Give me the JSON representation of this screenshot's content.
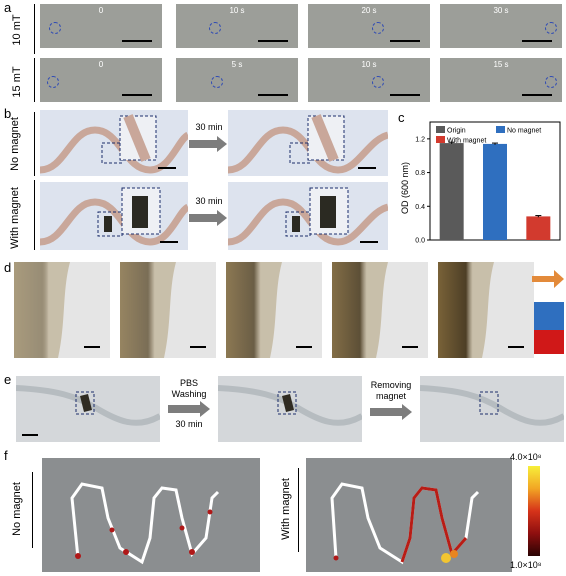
{
  "panels": {
    "a": "a",
    "b": "b",
    "c": "c",
    "d": "d",
    "e": "e",
    "f": "f"
  },
  "panel_a": {
    "rows": [
      {
        "label": "10 mT",
        "times": [
          "0",
          "10 s",
          "20 s",
          "30 s"
        ],
        "dot_x": [
          0.08,
          0.3,
          0.58,
          0.95
        ]
      },
      {
        "label": "15 mT",
        "times": [
          "0",
          "5 s",
          "10 s",
          "15 s"
        ],
        "dot_x": [
          0.06,
          0.32,
          0.58,
          0.95
        ]
      }
    ]
  },
  "panel_b": {
    "rows": [
      {
        "label": "No magnet",
        "arrow": "30 min"
      },
      {
        "label": "With magnet",
        "arrow": "30 min"
      }
    ]
  },
  "chart_data": {
    "type": "bar",
    "categories": [
      "Origin",
      "No magnet",
      "With magnet"
    ],
    "values": [
      1.15,
      1.14,
      0.28
    ],
    "errors": [
      0.01,
      0.01,
      0.01
    ],
    "colors": [
      "#5a5a5a",
      "#2f6fbf",
      "#d23a2e"
    ],
    "ylabel": "OD (600 nm)",
    "ylim": [
      0,
      1.4
    ],
    "yticks": [
      "0.0",
      "0.4",
      "0.8",
      "1.2"
    ],
    "legend": [
      {
        "name": "Origin",
        "color": "#5a5a5a"
      },
      {
        "name": "No magnet",
        "color": "#2f6fbf"
      },
      {
        "name": "With magnet",
        "color": "#d23a2e"
      }
    ]
  },
  "panel_d": {
    "levels": [
      0.15,
      0.45,
      0.6,
      0.75,
      0.9
    ],
    "swatch": [
      "#e38a3a",
      "#2f6fbf",
      "#d01818"
    ]
  },
  "panel_e": {
    "step1_lines": [
      "PBS",
      "Washing",
      "30 min"
    ],
    "step2_lines": [
      "Removing",
      "magnet"
    ]
  },
  "panel_f": {
    "rows": [
      {
        "label": "No magnet"
      },
      {
        "label": "With magnet"
      }
    ],
    "colorbar": {
      "max": "4.0×10⁸",
      "min": "1.0×10⁸"
    }
  }
}
